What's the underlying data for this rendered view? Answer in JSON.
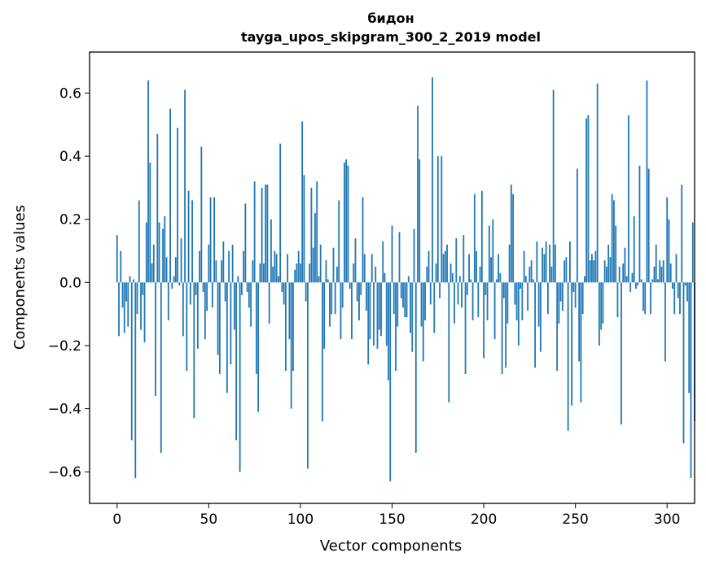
{
  "chart_data": {
    "type": "bar",
    "title": "бидон",
    "subtitle": "tayga_upos_skipgram_300_2_2019 model",
    "xlabel": "Vector components",
    "ylabel": "Components values",
    "xlim": [
      -15,
      315
    ],
    "ylim": [
      -0.7,
      0.73
    ],
    "xticks": [
      0,
      50,
      100,
      150,
      200,
      250,
      300
    ],
    "xtick_labels": [
      "0",
      "50",
      "100",
      "150",
      "200",
      "250",
      "300"
    ],
    "yticks": [
      -0.6,
      -0.4,
      -0.2,
      0.0,
      0.2,
      0.4,
      0.6
    ],
    "ytick_labels": [
      "−0.6",
      "−0.4",
      "−0.2",
      "0.0",
      "0.2",
      "0.4",
      "0.6"
    ],
    "bar_color": "#1f77b4",
    "values": [
      0.15,
      -0.17,
      0.1,
      -0.08,
      -0.16,
      -0.06,
      -0.14,
      0.02,
      -0.5,
      0.01,
      -0.62,
      -0.1,
      0.26,
      -0.15,
      -0.04,
      -0.19,
      0.19,
      0.64,
      0.38,
      0.06,
      0.12,
      -0.36,
      0.47,
      0.19,
      -0.54,
      0.17,
      0.21,
      0.08,
      -0.12,
      0.55,
      -0.02,
      0.02,
      0.08,
      0.49,
      -0.01,
      0.14,
      -0.17,
      0.61,
      -0.28,
      0.29,
      -0.07,
      0.26,
      -0.43,
      -0.04,
      -0.21,
      0.1,
      0.43,
      -0.03,
      -0.18,
      -0.09,
      0.12,
      0.27,
      -0.08,
      0.27,
      0.07,
      -0.23,
      -0.29,
      0.07,
      0.13,
      -0.06,
      -0.35,
      0.1,
      -0.26,
      0.12,
      -0.15,
      -0.5,
      0.02,
      -0.6,
      -0.04,
      0.1,
      0.25,
      -0.03,
      -0.08,
      -0.14,
      0.07,
      0.32,
      -0.29,
      -0.41,
      0.06,
      0.3,
      0.06,
      0.31,
      0.31,
      -0.13,
      0.2,
      0.05,
      0.1,
      0.09,
      0.02,
      0.44,
      -0.03,
      -0.07,
      -0.28,
      0.09,
      -0.18,
      -0.4,
      -0.28,
      0.04,
      0.06,
      0.1,
      0.06,
      0.51,
      0.34,
      -0.06,
      -0.59,
      0.06,
      0.3,
      0.11,
      0.22,
      0.32,
      0.02,
      0.12,
      -0.44,
      -0.21,
      0.07,
      0.01,
      -0.14,
      -0.1,
      0.11,
      -0.1,
      0.05,
      0.26,
      -0.18,
      -0.08,
      0.38,
      0.39,
      0.37,
      -0.02,
      -0.18,
      0.06,
      0.14,
      -0.06,
      -0.12,
      -0.04,
      0.27,
      0.09,
      -0.09,
      -0.26,
      -0.18,
      0.09,
      -0.2,
      0.05,
      -0.21,
      -0.15,
      -0.17,
      0.13,
      0.03,
      -0.2,
      -0.31,
      -0.63,
      0.18,
      -0.1,
      -0.28,
      -0.14,
      0.16,
      -0.05,
      -0.08,
      -0.11,
      -0.11,
      0.02,
      -0.16,
      -0.22,
      0.17,
      -0.54,
      0.56,
      0.39,
      -0.14,
      -0.25,
      -0.12,
      0.05,
      0.1,
      -0.07,
      0.65,
      -0.16,
      0.06,
      0.4,
      -0.05,
      0.4,
      0.09,
      0.1,
      0.12,
      -0.38,
      0.06,
      0.03,
      -0.13,
      0.14,
      -0.07,
      0.02,
      -0.08,
      0.15,
      -0.29,
      -0.04,
      0.09,
      0.01,
      -0.12,
      0.28,
      0.1,
      -0.11,
      0.05,
      0.29,
      -0.24,
      -0.04,
      -0.12,
      0.18,
      0.08,
      0.2,
      -0.18,
      0.01,
      0.09,
      0.03,
      -0.29,
      -0.05,
      -0.27,
      -0.13,
      0.12,
      0.31,
      0.28,
      -0.07,
      -0.12,
      -0.2,
      -0.02,
      -0.12,
      0.1,
      0.02,
      -0.09,
      0.05,
      0.07,
      0.01,
      -0.27,
      0.13,
      -0.14,
      -0.22,
      0.11,
      0.09,
      0.13,
      -0.1,
      0.12,
      0.05,
      0.61,
      0.12,
      -0.28,
      -0.13,
      -0.06,
      -0.09,
      0.07,
      0.08,
      -0.47,
      0.13,
      -0.39,
      -0.03,
      -0.08,
      0.36,
      -0.25,
      -0.38,
      -0.1,
      0.02,
      0.52,
      0.53,
      0.07,
      0.09,
      0.07,
      0.1,
      0.63,
      -0.2,
      -0.15,
      -0.13,
      0.07,
      0.05,
      0.12,
      0.08,
      0.28,
      0.26,
      0.18,
      -0.11,
      0.05,
      -0.45,
      0.06,
      0.11,
      0.02,
      0.53,
      -0.03,
      0.03,
      0.21,
      -0.02,
      -0.01,
      0.37,
      0.01,
      -0.09,
      -0.1,
      0.64,
      0.36,
      -0.1,
      0.01,
      0.05,
      0.12,
      0.01,
      0.07,
      0.05,
      0.07,
      -0.25,
      0.27,
      0.2,
      0.06,
      -0.02,
      -0.1,
      0.09,
      -0.05,
      -0.1,
      0.31,
      -0.51,
      -0.01,
      -0.06,
      -0.35,
      -0.62,
      0.19,
      -0.44
    ]
  }
}
